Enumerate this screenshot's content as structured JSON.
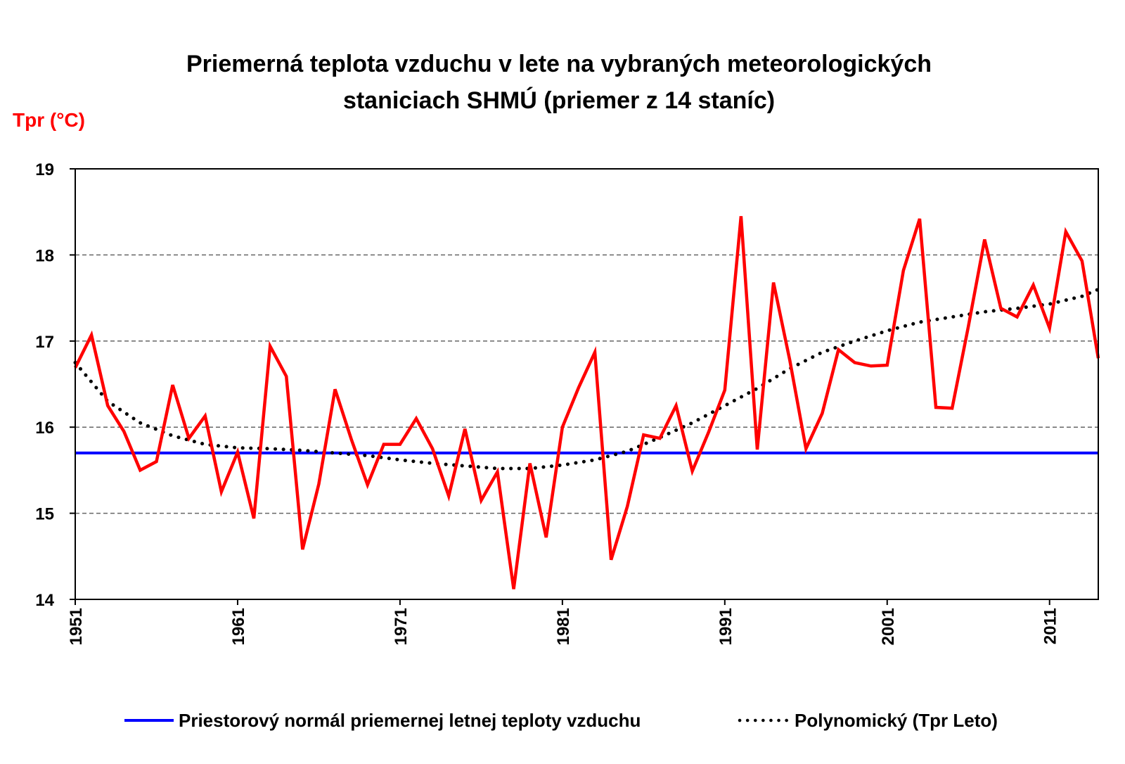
{
  "chart_data": {
    "type": "line",
    "title": [
      "Priemerná teplota vzduchu v lete na vybraných meteorologických",
      "staniciach SHMÚ (priemer z 14 staníc)"
    ],
    "ylabel": "Tpr (°C)",
    "xlabel": "",
    "ylim": [
      14,
      19
    ],
    "xlim": [
      1951,
      2014
    ],
    "yticks": [
      "14",
      "15",
      "16",
      "17",
      "18",
      "19"
    ],
    "xticks": [
      "1951",
      "1961",
      "1971",
      "1981",
      "1991",
      "2001",
      "2011"
    ],
    "grid": "horizontal dashed",
    "legend_position": "bottom",
    "colors": {
      "series": "#ff0000",
      "normal": "#0000ff",
      "trend": "#000000"
    },
    "series": [
      {
        "name": "Tpr Leto",
        "x_start": 1951,
        "values": [
          16.69,
          17.07,
          16.25,
          15.95,
          15.5,
          15.6,
          16.49,
          15.87,
          16.13,
          15.25,
          15.71,
          14.94,
          16.94,
          16.59,
          14.58,
          15.34,
          16.44,
          15.86,
          15.33,
          15.8,
          15.8,
          16.1,
          15.75,
          15.2,
          15.98,
          15.15,
          15.48,
          14.12,
          15.58,
          14.72,
          16.0,
          16.46,
          16.87,
          14.46,
          15.08,
          15.91,
          15.87,
          16.25,
          15.49,
          15.94,
          16.43,
          18.45,
          15.74,
          17.68,
          16.78,
          15.75,
          16.16,
          16.9,
          16.75,
          16.71,
          16.72,
          17.82,
          18.42,
          16.23,
          16.22,
          17.17,
          18.18,
          17.38,
          17.28,
          17.65,
          17.15,
          18.27,
          17.93,
          16.8
        ]
      }
    ],
    "normal": {
      "name": "Priestorový normál priemernej letnej teploty vzduchu",
      "value": 15.7
    },
    "trend": {
      "name": "Polynomický (Tpr Leto)",
      "x": [
        1951,
        1953,
        1955,
        1957,
        1959,
        1961,
        1963,
        1965,
        1967,
        1969,
        1971,
        1973,
        1975,
        1977,
        1979,
        1981,
        1983,
        1985,
        1987,
        1989,
        1991,
        1993,
        1995,
        1997,
        1999,
        2001,
        2003,
        2005,
        2007,
        2009,
        2011,
        2013,
        2014
      ],
      "y": [
        16.75,
        16.3,
        16.05,
        15.9,
        15.8,
        15.76,
        15.75,
        15.73,
        15.7,
        15.67,
        15.62,
        15.58,
        15.55,
        15.52,
        15.52,
        15.56,
        15.62,
        15.72,
        15.88,
        16.05,
        16.25,
        16.45,
        16.68,
        16.87,
        17.0,
        17.12,
        17.22,
        17.28,
        17.34,
        17.38,
        17.43,
        17.52,
        17.6
      ]
    }
  }
}
